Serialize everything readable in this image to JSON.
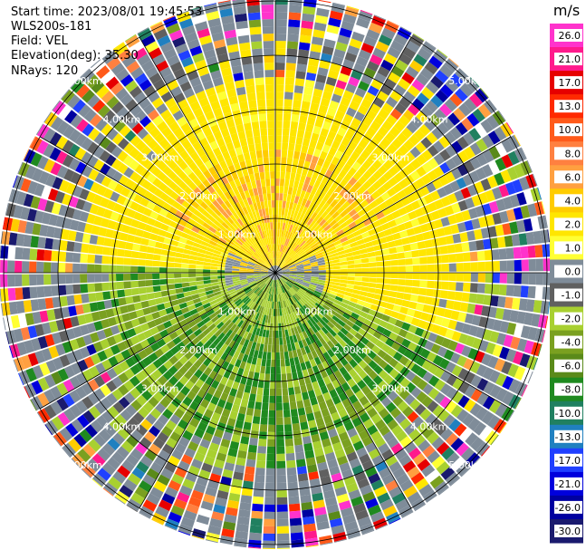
{
  "info": {
    "start_time": "Start time: 2023/08/01 19:45:53",
    "instrument": "WLS200s-181",
    "field": "Field: VEL",
    "elevation": "Elevation(deg): 35.30",
    "nrays": "NRays: 120"
  },
  "chart_data": {
    "type": "heatmap",
    "projection": "polar-ppi",
    "title": "",
    "field": "VEL",
    "units": "m/s",
    "n_rays": 120,
    "elevation_deg": 35.3,
    "max_range_km": 5.0,
    "range_rings_km": [
      1.0,
      2.0,
      3.0,
      4.0,
      5.0
    ],
    "ring_labels": [
      "1.00km",
      "2.00km",
      "3.00km",
      "4.00km",
      "5.00km"
    ],
    "colorbar": {
      "unit_label": "m/s",
      "tick_labels": [
        "26.0",
        "21.0",
        "17.0",
        "13.0",
        "10.0",
        "8.0",
        "6.0",
        "4.0",
        "2.0",
        "1.0",
        "0.0",
        "-1.0",
        "-2.0",
        "-4.0",
        "-6.0",
        "-8.0",
        "-10.0",
        "-13.0",
        "-17.0",
        "-21.0",
        "-26.0",
        "-30.0"
      ],
      "colors": [
        "#ff33cc",
        "#ff1a8c",
        "#e60000",
        "#ff2a00",
        "#ff5a1a",
        "#ff8040",
        "#ffa040",
        "#ffcc00",
        "#ffe600",
        "#ffff33",
        "#7f8c99",
        "#606060",
        "#a8d030",
        "#7aa020",
        "#5a8a1a",
        "#1f8a1f",
        "#208060",
        "#2080c0",
        "#2040ff",
        "#0000dd",
        "#0000a0",
        "#1a1a6e"
      ]
    }
  }
}
